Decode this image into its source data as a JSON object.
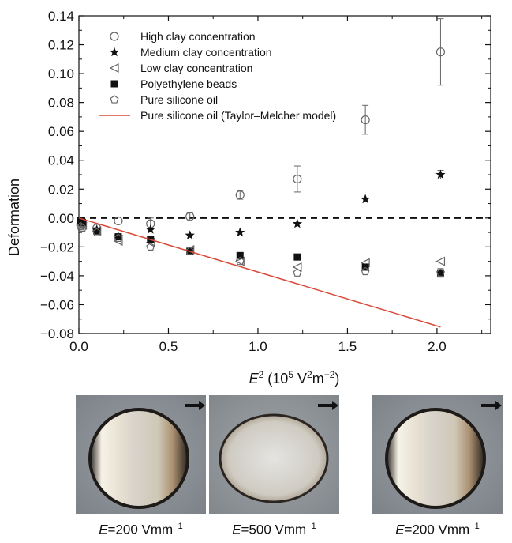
{
  "chart_data": {
    "type": "scatter",
    "xlabel": {
      "var": "E",
      "exp": "2",
      "unit_a": " (10",
      "unit_b": "5",
      "unit_c": " V",
      "unit_d": "2",
      "unit_e": "m",
      "unit_f": "−2",
      "unit_g": ")"
    },
    "ylabel": "Deformation",
    "xlim": [
      0.0,
      2.3
    ],
    "ylim": [
      -0.08,
      0.14
    ],
    "xticks": [
      "0.0",
      "0.5",
      "1.0",
      "1.5",
      "2.0"
    ],
    "yticks": [
      "−0.08",
      "−0.06",
      "−0.04",
      "−0.02",
      "0.00",
      "0.02",
      "0.04",
      "0.06",
      "0.08",
      "0.10",
      "0.12",
      "0.14"
    ],
    "legend_position": "top-left",
    "reference_line": {
      "y": 0,
      "style": "dashed"
    },
    "series": [
      {
        "name": "High clay concentration",
        "marker": "circle-open",
        "x": [
          0.01,
          0.02,
          0.1,
          0.22,
          0.4,
          0.62,
          0.9,
          1.22,
          1.6,
          2.02
        ],
        "y": [
          -0.005,
          -0.004,
          -0.007,
          -0.002,
          -0.004,
          0.001,
          0.016,
          0.027,
          0.068,
          0.115
        ],
        "err": [
          0.002,
          0.002,
          0.002,
          0.002,
          0.004,
          0.003,
          0.003,
          0.009,
          0.01,
          0.023
        ]
      },
      {
        "name": "Medium clay concentration",
        "marker": "star-filled",
        "x": [
          0.01,
          0.02,
          0.1,
          0.22,
          0.4,
          0.62,
          0.9,
          1.22,
          1.6,
          2.02
        ],
        "y": [
          -0.003,
          -0.004,
          -0.008,
          -0.013,
          -0.008,
          -0.012,
          -0.01,
          -0.004,
          0.013,
          0.03
        ],
        "err": [
          0.002,
          0.002,
          0.002,
          0.002,
          0.002,
          0.002,
          0.002,
          0.002,
          0.002,
          0.003
        ]
      },
      {
        "name": "Low clay concentration",
        "marker": "triangle-left-open",
        "x": [
          0.01,
          0.02,
          0.1,
          0.22,
          0.4,
          0.62,
          0.9,
          1.22,
          1.6,
          2.02
        ],
        "y": [
          -0.004,
          -0.005,
          -0.009,
          -0.016,
          -0.017,
          -0.022,
          -0.03,
          -0.034,
          -0.031,
          -0.03
        ],
        "err": [
          0.002,
          0.002,
          0.002,
          0.002,
          0.002,
          0.002,
          0.002,
          0.002,
          0.002,
          0.002
        ]
      },
      {
        "name": "Polyethylene beads",
        "marker": "square-filled",
        "x": [
          0.01,
          0.02,
          0.1,
          0.22,
          0.4,
          0.62,
          0.9,
          1.22,
          1.6,
          2.02
        ],
        "y": [
          -0.002,
          -0.003,
          -0.009,
          -0.013,
          -0.015,
          -0.023,
          -0.026,
          -0.027,
          -0.034,
          -0.038
        ],
        "err": [
          0.002,
          0.002,
          0.002,
          0.002,
          0.002,
          0.002,
          0.002,
          0.002,
          0.002,
          0.003
        ]
      },
      {
        "name": "Pure silicone oil",
        "marker": "pentagon-open",
        "x": [
          0.01,
          0.02,
          0.1,
          0.22,
          0.4,
          0.62,
          0.9,
          1.22,
          1.6,
          2.02
        ],
        "y": [
          -0.006,
          -0.007,
          -0.01,
          -0.014,
          -0.02,
          -0.023,
          -0.03,
          -0.038,
          -0.037,
          -0.038
        ],
        "err": [
          0.002,
          0.002,
          0.002,
          0.002,
          0.002,
          0.002,
          0.002,
          0.002,
          0.002,
          0.002
        ]
      },
      {
        "name": "Pure silicone oil (Taylor–Melcher model)",
        "marker": "line",
        "color": "#d94a3a",
        "x": [
          0.0,
          2.02
        ],
        "y": [
          0.0,
          -0.0755
        ]
      }
    ]
  },
  "photos": [
    {
      "caption_var": "E",
      "caption_value": "=200 Vmm",
      "caption_exp": "−1",
      "shape": "sphere"
    },
    {
      "caption_var": "E",
      "caption_value": "=500 Vmm",
      "caption_exp": "−1",
      "shape": "oblate"
    },
    {
      "caption_var": "E",
      "caption_value": "=200 Vmm",
      "caption_exp": "−1",
      "shape": "sphere"
    }
  ],
  "colors": {
    "model_line": "#d94a3a",
    "marker": "#111111",
    "open_marker": "#777777"
  }
}
